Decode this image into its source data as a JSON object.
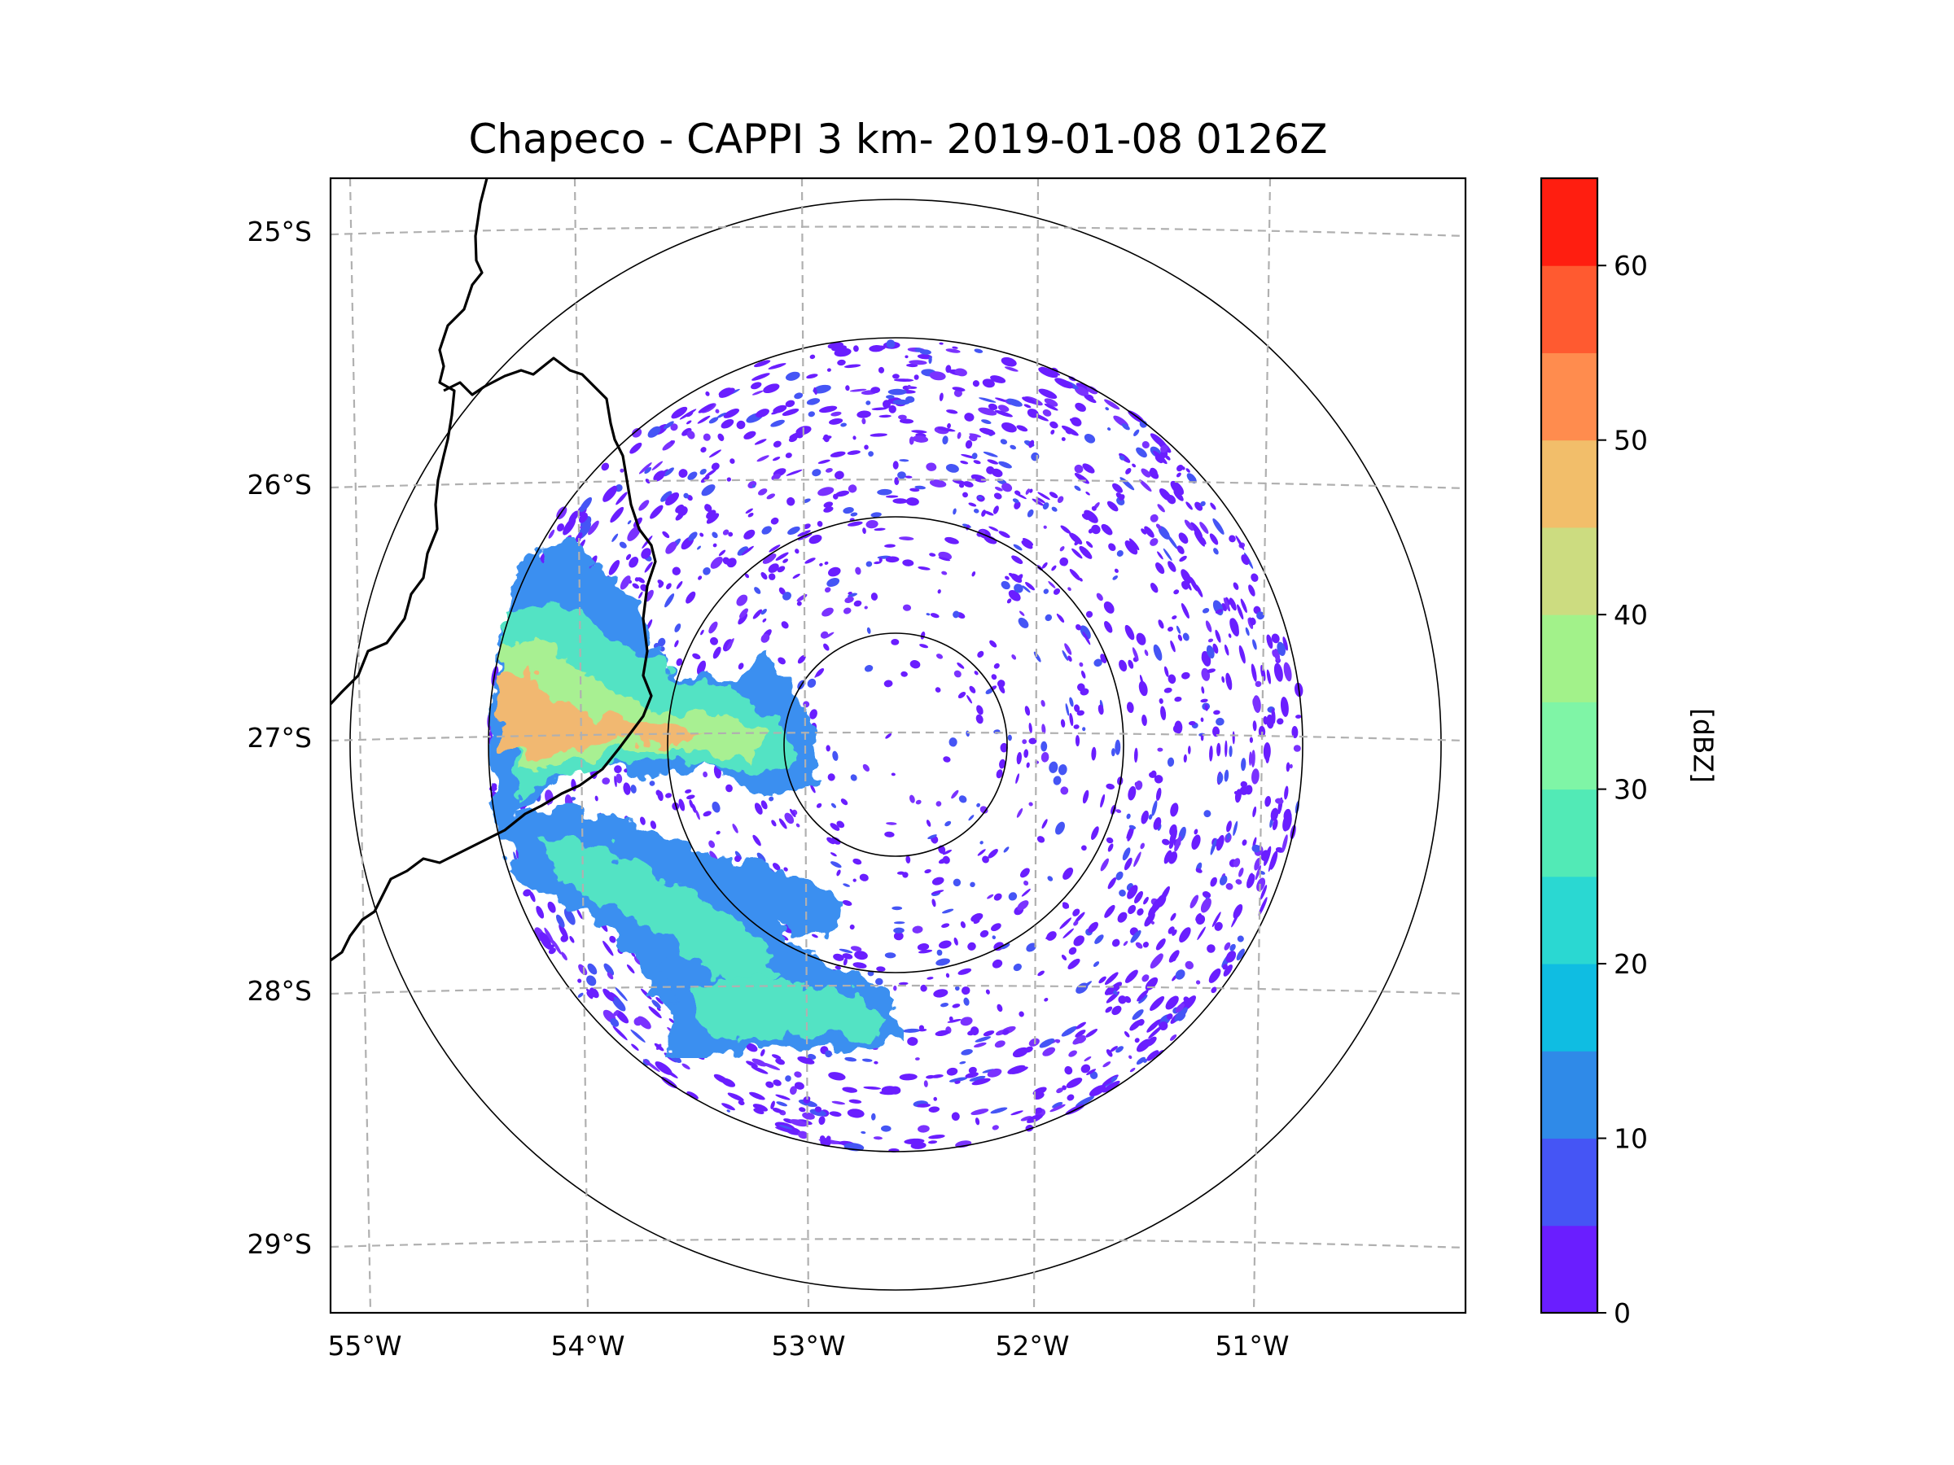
{
  "title": "Chapeco - CAPPI 3 km- 2019-01-08 0126Z",
  "map": {
    "lat_labels": [
      "25°S",
      "26°S",
      "27°S",
      "28°S",
      "29°S"
    ],
    "lon_labels": [
      "55°W",
      "54°W",
      "53°W",
      "52°W",
      "51°W"
    ],
    "range_rings": 4,
    "gridline_color": "#b0b0b0",
    "border_color": "#000000"
  },
  "colorbar": {
    "label": "[dBZ]",
    "tick_labels": [
      "0",
      "10",
      "20",
      "30",
      "40",
      "50",
      "60"
    ],
    "min": 0,
    "max": 65,
    "bins": [
      {
        "lo": 0,
        "hi": 5,
        "color": "#6a1eff"
      },
      {
        "lo": 5,
        "hi": 10,
        "color": "#4555f5"
      },
      {
        "lo": 10,
        "hi": 15,
        "color": "#2f8ae8"
      },
      {
        "lo": 15,
        "hi": 20,
        "color": "#0fbde2"
      },
      {
        "lo": 20,
        "hi": 25,
        "color": "#2ad8d2"
      },
      {
        "lo": 25,
        "hi": 30,
        "color": "#52eab6"
      },
      {
        "lo": 30,
        "hi": 35,
        "color": "#7ff5a6"
      },
      {
        "lo": 35,
        "hi": 40,
        "color": "#a2f28a"
      },
      {
        "lo": 40,
        "hi": 45,
        "color": "#ccdc80"
      },
      {
        "lo": 45,
        "hi": 50,
        "color": "#f2be6a"
      },
      {
        "lo": 50,
        "hi": 55,
        "color": "#ff8c4e"
      },
      {
        "lo": 55,
        "hi": 60,
        "color": "#ff5a30"
      },
      {
        "lo": 60,
        "hi": 65,
        "color": "#ff1e10"
      }
    ]
  }
}
